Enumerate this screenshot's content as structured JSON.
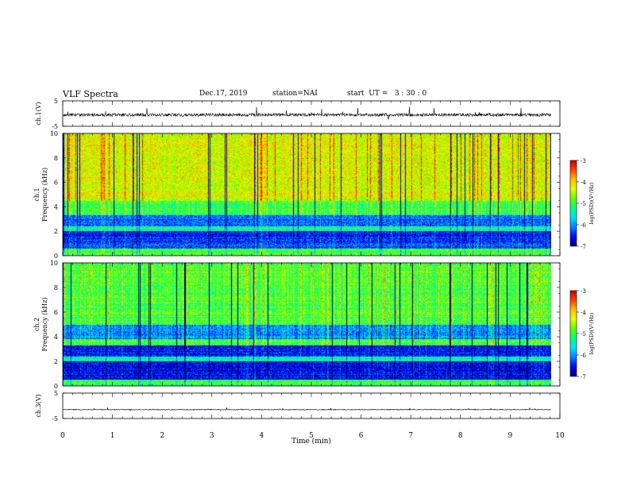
{
  "header": {
    "title": "VLF Spectra",
    "date": "Dec.17, 2019",
    "station": "station=NAI",
    "start": "start  UT =   3 : 30 : 0"
  },
  "colors": {
    "colormap": [
      "#00007a",
      "#0000ff",
      "#0080ff",
      "#00e0ff",
      "#00ff80",
      "#60ff00",
      "#e0ff00",
      "#ffc000",
      "#ff4000",
      "#c00000"
    ]
  },
  "chart_data": [
    {
      "type": "line",
      "panel": "ch1-waveform",
      "ylabel": "ch.1(V)",
      "ylim": [
        -5,
        5
      ],
      "yticks": [
        "5",
        "-5"
      ],
      "xlim": [
        0,
        10
      ],
      "baseline_v": -0.5,
      "noise_amplitude_v": 1.2,
      "series": [
        {
          "values": []
        }
      ]
    },
    {
      "type": "heatmap",
      "panel": "ch1-spectrogram",
      "ylabel": "ch.1\nFrequency (kHz)",
      "ylabel_line1": "ch.1",
      "ylabel_line2": "Frequency (kHz)",
      "ylim": [
        0,
        10
      ],
      "yticks": [
        "0",
        "2",
        "4",
        "6",
        "8",
        "10"
      ],
      "xlim": [
        0,
        10
      ],
      "data_end_min": 9.82,
      "colorbar": {
        "label": "log(PSD)(V²/Hz)",
        "range": [
          -7,
          -3
        ],
        "ticks": [
          "-3",
          "-4",
          "-5",
          "-6",
          "-7"
        ]
      },
      "bands_khz": [
        {
          "from": 0.0,
          "to": 0.6,
          "level": -5.0
        },
        {
          "from": 0.6,
          "to": 1.1,
          "level": -6.2
        },
        {
          "from": 1.1,
          "to": 2.0,
          "level": -6.5
        },
        {
          "from": 2.0,
          "to": 2.4,
          "level": -5.3
        },
        {
          "from": 2.4,
          "to": 3.3,
          "level": -6.2
        },
        {
          "from": 3.3,
          "to": 4.5,
          "level": -5.0
        },
        {
          "from": 4.5,
          "to": 10.0,
          "level": -4.3
        }
      ]
    },
    {
      "type": "heatmap",
      "panel": "ch2-spectrogram",
      "ylabel": "ch.2\nFrequency (kHz)",
      "ylabel_line1": "ch.2",
      "ylabel_line2": "Frequency (kHz)",
      "ylim": [
        0,
        10
      ],
      "yticks": [
        "0",
        "2",
        "4",
        "6",
        "8",
        "10"
      ],
      "xlim": [
        0,
        10
      ],
      "data_end_min": 9.82,
      "colorbar": {
        "label": "log(PSD)(V²/Hz)",
        "range": [
          -7,
          -3
        ],
        "ticks": [
          "-3",
          "-4",
          "-5",
          "-6",
          "-7"
        ]
      },
      "bands_khz": [
        {
          "from": 0.0,
          "to": 0.5,
          "level": -5.0
        },
        {
          "from": 0.5,
          "to": 2.0,
          "level": -6.6
        },
        {
          "from": 2.0,
          "to": 2.4,
          "level": -5.4
        },
        {
          "from": 2.4,
          "to": 3.3,
          "level": -6.5
        },
        {
          "from": 3.3,
          "to": 3.8,
          "level": -5.0
        },
        {
          "from": 3.8,
          "to": 5.0,
          "level": -6.0
        },
        {
          "from": 5.0,
          "to": 10.0,
          "level": -4.9
        }
      ]
    },
    {
      "type": "line",
      "panel": "ch3-waveform",
      "ylabel": "ch.3(V)",
      "ylim": [
        -5,
        5
      ],
      "yticks": [
        "5",
        "-5"
      ],
      "xlim": [
        0,
        10
      ],
      "baseline_v": -1.5,
      "noise_amplitude_v": 0.3,
      "xlabel": "Time (min)",
      "xticks": [
        "0",
        "1",
        "2",
        "3",
        "4",
        "5",
        "6",
        "7",
        "8",
        "9",
        "10"
      ],
      "series": [
        {
          "values": []
        }
      ]
    }
  ]
}
